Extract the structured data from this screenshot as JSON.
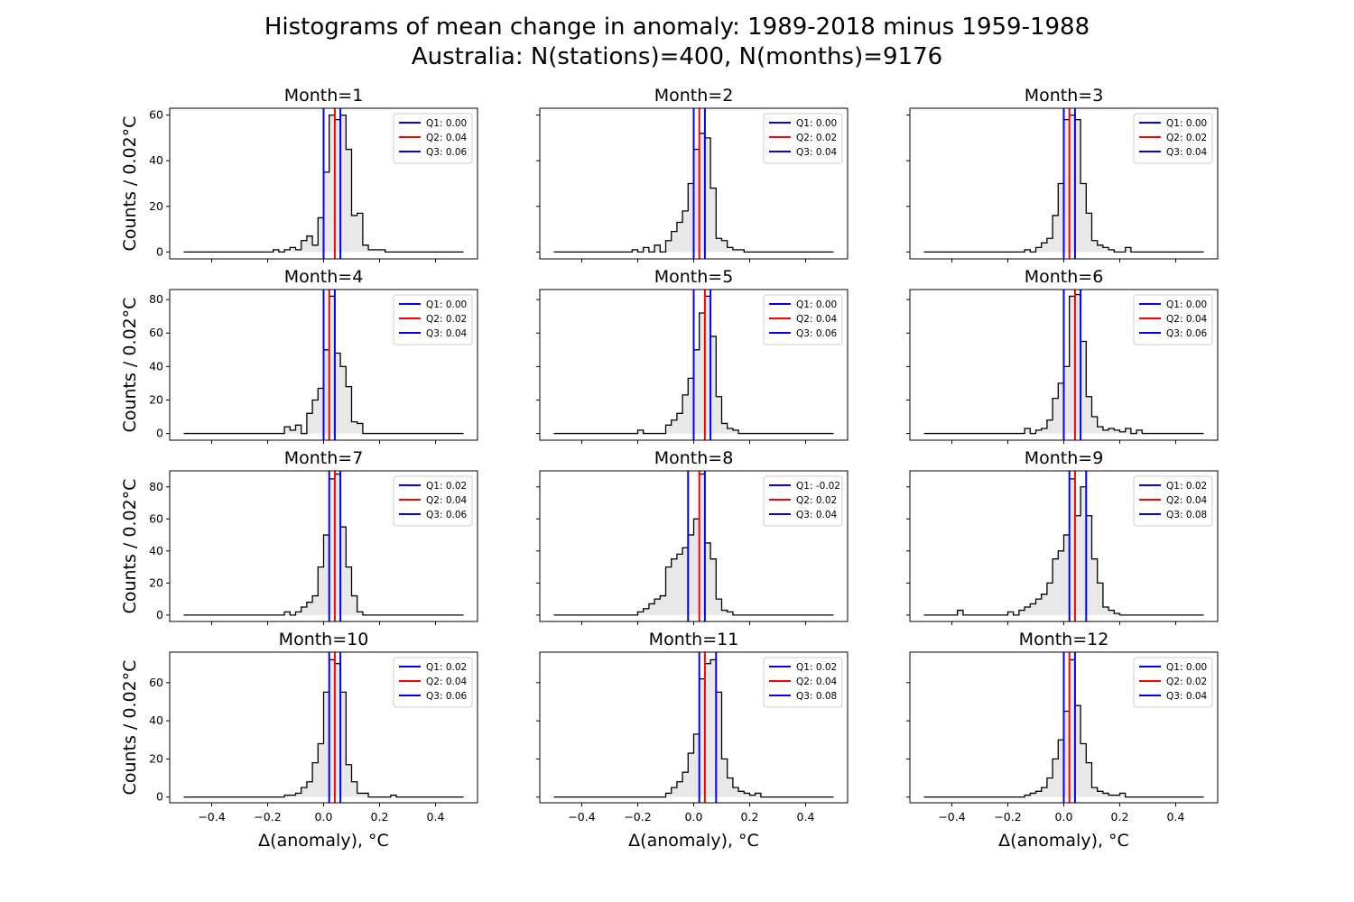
{
  "figure": {
    "title_line_1": "Histograms of mean change in anomaly: 1989-2018 minus 1959-1988",
    "title_line_2": "Australia: N(stations)=400, N(months)=9176",
    "xlabel": "Δ(anomaly), °C",
    "ylabel": "Counts / 0.02°C"
  },
  "colors": {
    "quartile_outer": "#0000ff",
    "median": "#ff0000",
    "histogram_fill": "#e8e8e8",
    "histogram_edge": "#000000"
  },
  "chart_data": [
    {
      "type": "histogram",
      "title": "Month=1",
      "bin_width": 0.02,
      "xlim": [
        -0.55,
        0.55
      ],
      "ylim": [
        -3,
        63
      ],
      "yticks": [
        0,
        20,
        40,
        60
      ],
      "quartiles": [
        {
          "label": "Q1: 0.00",
          "value": 0.0,
          "color": "blue"
        },
        {
          "label": "Q2: 0.04",
          "value": 0.04,
          "color": "red"
        },
        {
          "label": "Q3: 0.06",
          "value": 0.06,
          "color": "blue"
        }
      ],
      "bins": [
        [
          -0.18,
          1
        ],
        [
          -0.14,
          1
        ],
        [
          -0.12,
          2
        ],
        [
          -0.1,
          1
        ],
        [
          -0.08,
          5
        ],
        [
          -0.06,
          7
        ],
        [
          -0.04,
          3
        ],
        [
          -0.02,
          15
        ],
        [
          0.0,
          35
        ],
        [
          0.02,
          60
        ],
        [
          0.04,
          58
        ],
        [
          0.06,
          60
        ],
        [
          0.08,
          45
        ],
        [
          0.1,
          16
        ],
        [
          0.12,
          17
        ],
        [
          0.14,
          3
        ],
        [
          0.16,
          1
        ],
        [
          0.18,
          1
        ],
        [
          0.2,
          1
        ]
      ]
    },
    {
      "type": "histogram",
      "title": "Month=2",
      "bin_width": 0.02,
      "xlim": [
        -0.55,
        0.55
      ],
      "ylim": [
        -3,
        63
      ],
      "yticks": [],
      "quartiles": [
        {
          "label": "Q1: 0.00",
          "value": 0.0,
          "color": "blue"
        },
        {
          "label": "Q2: 0.02",
          "value": 0.02,
          "color": "red"
        },
        {
          "label": "Q3: 0.04",
          "value": 0.04,
          "color": "blue"
        }
      ],
      "bins": [
        [
          -0.22,
          1
        ],
        [
          -0.18,
          2
        ],
        [
          -0.14,
          3
        ],
        [
          -0.1,
          5
        ],
        [
          -0.08,
          9
        ],
        [
          -0.06,
          13
        ],
        [
          -0.04,
          18
        ],
        [
          -0.02,
          30
        ],
        [
          0.0,
          45
        ],
        [
          0.02,
          52
        ],
        [
          0.04,
          50
        ],
        [
          0.06,
          28
        ],
        [
          0.08,
          6
        ],
        [
          0.1,
          5
        ],
        [
          0.12,
          2
        ],
        [
          0.14,
          1
        ],
        [
          0.16,
          1
        ]
      ]
    },
    {
      "type": "histogram",
      "title": "Month=3",
      "bin_width": 0.02,
      "xlim": [
        -0.55,
        0.55
      ],
      "ylim": [
        -3,
        63
      ],
      "yticks": [],
      "quartiles": [
        {
          "label": "Q1: 0.00",
          "value": 0.0,
          "color": "blue"
        },
        {
          "label": "Q2: 0.02",
          "value": 0.02,
          "color": "red"
        },
        {
          "label": "Q3: 0.04",
          "value": 0.04,
          "color": "blue"
        }
      ],
      "bins": [
        [
          -0.14,
          1
        ],
        [
          -0.1,
          2
        ],
        [
          -0.08,
          4
        ],
        [
          -0.06,
          6
        ],
        [
          -0.04,
          16
        ],
        [
          -0.02,
          30
        ],
        [
          0.0,
          58
        ],
        [
          0.02,
          60
        ],
        [
          0.04,
          58
        ],
        [
          0.06,
          30
        ],
        [
          0.08,
          17
        ],
        [
          0.1,
          5
        ],
        [
          0.12,
          3
        ],
        [
          0.14,
          2
        ],
        [
          0.16,
          1
        ],
        [
          0.22,
          2
        ]
      ]
    },
    {
      "type": "histogram",
      "title": "Month=4",
      "bin_width": 0.02,
      "xlim": [
        -0.55,
        0.55
      ],
      "ylim": [
        -4,
        86
      ],
      "yticks": [
        0,
        20,
        40,
        60,
        80
      ],
      "quartiles": [
        {
          "label": "Q1: 0.00",
          "value": 0.0,
          "color": "blue"
        },
        {
          "label": "Q2: 0.02",
          "value": 0.02,
          "color": "red"
        },
        {
          "label": "Q3: 0.04",
          "value": 0.04,
          "color": "blue"
        }
      ],
      "bins": [
        [
          -0.14,
          4
        ],
        [
          -0.12,
          2
        ],
        [
          -0.1,
          5
        ],
        [
          -0.06,
          12
        ],
        [
          -0.04,
          20
        ],
        [
          -0.02,
          27
        ],
        [
          0.0,
          50
        ],
        [
          0.02,
          82
        ],
        [
          0.04,
          48
        ],
        [
          0.06,
          40
        ],
        [
          0.08,
          28
        ],
        [
          0.1,
          7
        ],
        [
          0.12,
          6
        ]
      ]
    },
    {
      "type": "histogram",
      "title": "Month=5",
      "bin_width": 0.02,
      "xlim": [
        -0.55,
        0.55
      ],
      "ylim": [
        -4,
        86
      ],
      "yticks": [],
      "quartiles": [
        {
          "label": "Q1: 0.00",
          "value": 0.0,
          "color": "blue"
        },
        {
          "label": "Q2: 0.04",
          "value": 0.04,
          "color": "red"
        },
        {
          "label": "Q3: 0.06",
          "value": 0.06,
          "color": "blue"
        }
      ],
      "bins": [
        [
          -0.2,
          2
        ],
        [
          -0.1,
          5
        ],
        [
          -0.08,
          8
        ],
        [
          -0.06,
          12
        ],
        [
          -0.04,
          23
        ],
        [
          -0.02,
          33
        ],
        [
          0.0,
          50
        ],
        [
          0.02,
          72
        ],
        [
          0.04,
          82
        ],
        [
          0.06,
          58
        ],
        [
          0.08,
          22
        ],
        [
          0.1,
          6
        ],
        [
          0.12,
          3
        ],
        [
          0.14,
          2
        ]
      ]
    },
    {
      "type": "histogram",
      "title": "Month=6",
      "bin_width": 0.02,
      "xlim": [
        -0.55,
        0.55
      ],
      "ylim": [
        -4,
        86
      ],
      "yticks": [],
      "quartiles": [
        {
          "label": "Q1: 0.00",
          "value": 0.0,
          "color": "blue"
        },
        {
          "label": "Q2: 0.04",
          "value": 0.04,
          "color": "red"
        },
        {
          "label": "Q3: 0.06",
          "value": 0.06,
          "color": "blue"
        }
      ],
      "bins": [
        [
          -0.14,
          3
        ],
        [
          -0.1,
          2
        ],
        [
          -0.08,
          3
        ],
        [
          -0.06,
          8
        ],
        [
          -0.04,
          21
        ],
        [
          -0.02,
          30
        ],
        [
          0.0,
          40
        ],
        [
          0.02,
          82
        ],
        [
          0.04,
          83
        ],
        [
          0.06,
          55
        ],
        [
          0.08,
          22
        ],
        [
          0.1,
          10
        ],
        [
          0.12,
          4
        ],
        [
          0.14,
          2
        ],
        [
          0.16,
          3
        ],
        [
          0.18,
          2
        ],
        [
          0.2,
          1
        ],
        [
          0.22,
          3
        ],
        [
          0.26,
          2
        ]
      ]
    },
    {
      "type": "histogram",
      "title": "Month=7",
      "bin_width": 0.02,
      "xlim": [
        -0.55,
        0.55
      ],
      "ylim": [
        -4,
        90
      ],
      "yticks": [
        0,
        20,
        40,
        60,
        80
      ],
      "quartiles": [
        {
          "label": "Q1: 0.02",
          "value": 0.02,
          "color": "blue"
        },
        {
          "label": "Q2: 0.04",
          "value": 0.04,
          "color": "red"
        },
        {
          "label": "Q3: 0.06",
          "value": 0.06,
          "color": "blue"
        }
      ],
      "bins": [
        [
          -0.14,
          2
        ],
        [
          -0.1,
          2
        ],
        [
          -0.08,
          5
        ],
        [
          -0.06,
          8
        ],
        [
          -0.04,
          12
        ],
        [
          -0.02,
          30
        ],
        [
          0.0,
          50
        ],
        [
          0.02,
          85
        ],
        [
          0.04,
          88
        ],
        [
          0.06,
          55
        ],
        [
          0.08,
          30
        ],
        [
          0.1,
          12
        ],
        [
          0.12,
          2
        ]
      ]
    },
    {
      "type": "histogram",
      "title": "Month=8",
      "bin_width": 0.02,
      "xlim": [
        -0.55,
        0.55
      ],
      "ylim": [
        -4,
        90
      ],
      "yticks": [],
      "quartiles": [
        {
          "label": "Q1: -0.02",
          "value": -0.02,
          "color": "blue"
        },
        {
          "label": "Q2: 0.02",
          "value": 0.02,
          "color": "red"
        },
        {
          "label": "Q3: 0.04",
          "value": 0.04,
          "color": "blue"
        }
      ],
      "bins": [
        [
          -0.2,
          2
        ],
        [
          -0.18,
          4
        ],
        [
          -0.16,
          7
        ],
        [
          -0.14,
          10
        ],
        [
          -0.12,
          12
        ],
        [
          -0.1,
          30
        ],
        [
          -0.08,
          35
        ],
        [
          -0.06,
          38
        ],
        [
          -0.04,
          42
        ],
        [
          -0.02,
          50
        ],
        [
          0.0,
          60
        ],
        [
          0.02,
          88
        ],
        [
          0.04,
          45
        ],
        [
          0.06,
          35
        ],
        [
          0.08,
          10
        ],
        [
          0.1,
          3
        ],
        [
          0.12,
          2
        ]
      ]
    },
    {
      "type": "histogram",
      "title": "Month=9",
      "bin_width": 0.02,
      "xlim": [
        -0.55,
        0.55
      ],
      "ylim": [
        -4,
        90
      ],
      "yticks": [],
      "quartiles": [
        {
          "label": "Q1: 0.02",
          "value": 0.02,
          "color": "blue"
        },
        {
          "label": "Q2: 0.04",
          "value": 0.04,
          "color": "red"
        },
        {
          "label": "Q3: 0.08",
          "value": 0.08,
          "color": "blue"
        }
      ],
      "bins": [
        [
          -0.38,
          3
        ],
        [
          -0.2,
          2
        ],
        [
          -0.16,
          3
        ],
        [
          -0.14,
          5
        ],
        [
          -0.12,
          7
        ],
        [
          -0.1,
          10
        ],
        [
          -0.08,
          13
        ],
        [
          -0.06,
          20
        ],
        [
          -0.04,
          35
        ],
        [
          -0.02,
          40
        ],
        [
          0.0,
          50
        ],
        [
          0.02,
          85
        ],
        [
          0.04,
          62
        ],
        [
          0.06,
          80
        ],
        [
          0.08,
          62
        ],
        [
          0.1,
          35
        ],
        [
          0.12,
          20
        ],
        [
          0.14,
          5
        ],
        [
          0.16,
          3
        ],
        [
          0.18,
          1
        ]
      ]
    },
    {
      "type": "histogram",
      "title": "Month=10",
      "bin_width": 0.02,
      "xlim": [
        -0.55,
        0.55
      ],
      "ylim": [
        -3,
        76
      ],
      "yticks": [
        0,
        20,
        40,
        60
      ],
      "quartiles": [
        {
          "label": "Q1: 0.02",
          "value": 0.02,
          "color": "blue"
        },
        {
          "label": "Q2: 0.04",
          "value": 0.04,
          "color": "red"
        },
        {
          "label": "Q3: 0.06",
          "value": 0.06,
          "color": "blue"
        }
      ],
      "bins": [
        [
          -0.14,
          1
        ],
        [
          -0.12,
          1
        ],
        [
          -0.1,
          2
        ],
        [
          -0.08,
          5
        ],
        [
          -0.06,
          8
        ],
        [
          -0.04,
          18
        ],
        [
          -0.02,
          28
        ],
        [
          0.0,
          55
        ],
        [
          0.02,
          72
        ],
        [
          0.04,
          70
        ],
        [
          0.06,
          55
        ],
        [
          0.08,
          17
        ],
        [
          0.1,
          8
        ],
        [
          0.12,
          2
        ],
        [
          0.14,
          2
        ],
        [
          0.24,
          1
        ]
      ]
    },
    {
      "type": "histogram",
      "title": "Month=11",
      "bin_width": 0.02,
      "xlim": [
        -0.55,
        0.55
      ],
      "ylim": [
        -3,
        76
      ],
      "yticks": [],
      "quartiles": [
        {
          "label": "Q1: 0.02",
          "value": 0.02,
          "color": "blue"
        },
        {
          "label": "Q2: 0.04",
          "value": 0.04,
          "color": "red"
        },
        {
          "label": "Q3: 0.08",
          "value": 0.08,
          "color": "blue"
        }
      ],
      "bins": [
        [
          -0.1,
          2
        ],
        [
          -0.08,
          5
        ],
        [
          -0.06,
          8
        ],
        [
          -0.04,
          13
        ],
        [
          -0.02,
          23
        ],
        [
          0.0,
          33
        ],
        [
          0.02,
          62
        ],
        [
          0.04,
          70
        ],
        [
          0.06,
          72
        ],
        [
          0.08,
          55
        ],
        [
          0.1,
          20
        ],
        [
          0.12,
          10
        ],
        [
          0.14,
          5
        ],
        [
          0.16,
          3
        ],
        [
          0.18,
          2
        ],
        [
          0.2,
          1
        ],
        [
          0.22,
          2
        ]
      ]
    },
    {
      "type": "histogram",
      "title": "Month=12",
      "bin_width": 0.02,
      "xlim": [
        -0.55,
        0.55
      ],
      "ylim": [
        -3,
        76
      ],
      "yticks": [],
      "quartiles": [
        {
          "label": "Q1: 0.00",
          "value": 0.0,
          "color": "blue"
        },
        {
          "label": "Q2: 0.02",
          "value": 0.02,
          "color": "red"
        },
        {
          "label": "Q3: 0.04",
          "value": 0.04,
          "color": "blue"
        }
      ],
      "bins": [
        [
          -0.14,
          1
        ],
        [
          -0.12,
          2
        ],
        [
          -0.1,
          3
        ],
        [
          -0.08,
          5
        ],
        [
          -0.06,
          10
        ],
        [
          -0.04,
          20
        ],
        [
          -0.02,
          30
        ],
        [
          0.0,
          45
        ],
        [
          0.02,
          72
        ],
        [
          0.04,
          48
        ],
        [
          0.06,
          28
        ],
        [
          0.08,
          18
        ],
        [
          0.1,
          5
        ],
        [
          0.12,
          3
        ],
        [
          0.14,
          2
        ],
        [
          0.16,
          1
        ],
        [
          0.18,
          1
        ],
        [
          0.2,
          2
        ]
      ]
    }
  ]
}
